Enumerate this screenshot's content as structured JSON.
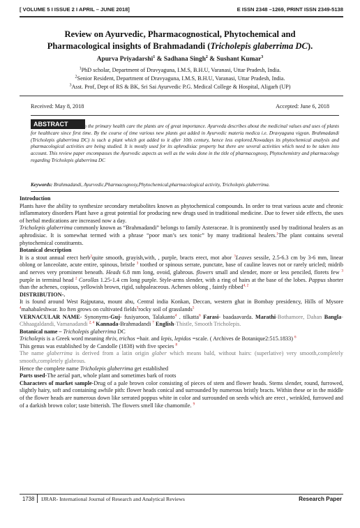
{
  "header": {
    "volume": "[ VOLUME 5 I ISSUE 2 I APRIL – JUNE 2018]",
    "issn": "E ISSN 2348 –1269, PRINT ISSN 2349-5138"
  },
  "title": {
    "line1": "Review on Ayurvedic, Pharmacognostical, Phytochemical and",
    "line2_prefix": "Pharmacological insights of Brahmadandi (",
    "line2_species": "Tricholepis glaberrima DC",
    "line2_suffix": ")."
  },
  "authors": {
    "a1": "Apurva Priyadarshi",
    "a2": "Sadhana Singh",
    "a3": "Sushant Kumar",
    "sep1": " & ",
    "sep2": " & ",
    "n1": "1",
    "n2": "2",
    "n3": "3"
  },
  "affiliations": [
    {
      "n": "1",
      "text": "PhD scholar, Department of Dravyaguna, I.M.S, B.H.U, Varanasi, Uttar Pradesh, India."
    },
    {
      "n": "2",
      "text": "Senior Resident, Department of Dravyaguna, I.M.S, B.H.U, Varanasi, Uttar Pradesh, India."
    },
    {
      "n": "3",
      "text": "Asst. Prof, Dept of RS & BK, Sri Sai Ayurvedic P.G. Medical College & Hospital, Aligarh (UP)"
    }
  ],
  "dates": {
    "received": "Received: May 8, 2018",
    "accepted": "Accepted: June 6, 2018"
  },
  "abstract": {
    "label": "ABSTRACT",
    "text": "In the primary health care the plants are of great importance. Ayurveda describes about the medicinal values and uses of plants for healthcare since first time. By the course of time various new plants got added in Ayurvedic materia medica i.e. Dravyaguna vigyan. Brahmadandi (Tricholepis glaberrima DC) is such a plant which got added to it after 10th century, hence less explored.Nowadays its phytochemical analysis and pharmacological activities are being studied. It is mostly used for its aphrodisiac property but there are several activities which need to be taken into account. This review paper encompasses the Ayurvedic aspects as well as the woks done in the title of pharmacognosy, Phytochemistry and pharmacology regarding Tricholepis glaberrima DC"
  },
  "keywords": {
    "label": "Keywords:",
    "text": "Brahmadandi, Ayurvedic,Pharmacognosy,Phytochemical,pharmacological activity, Tricholepis glaberrima."
  },
  "body": {
    "intro_heading": "Introduction",
    "intro_p1": "Plants have the ability to synthesize secondary metabolites known as phytochemical compounds. In order to treat various acute and chronic inflammatory disorders Plant have a great potential for producing new drugs used in traditional medicine. Due to fewer side effects, the uses of herbal medications are increased now a day.",
    "intro_p2_italic": "Tricholepis glaberrima",
    "intro_p2": " commonly known as “Brahmadandi” belongs to family Asteraceae. It is prominently used by traditional healers as an aphrodisiac.  It is somewhat termed with a phrase “poor man’s sex tonic” by many traditional healers.",
    "intro_p2_ref": "1",
    "intro_p2_end": "The plant contains several phytochemical constituents.",
    "bot_heading": "Botanical description",
    "bot_a": "It is a stout annual erect herb",
    "bot_ref2": "2",
    "bot_b": "quite smooth, grayish,with, , purple, bracts erect, mot abor ",
    "bot_ref3": "3",
    "bot_leaves": "Leaves",
    "bot_c": " sessile, 2.5-6.3 cm by 3-6 mm, linear oblong or lanceolate, acute entire, spinous, bristle ",
    "bot_ref3b": "3",
    "bot_d": " toothed or spinous serrate, punctate, base of cauline leaves not or rarely uricled; midrib and nerves very prominent beneath. ",
    "bot_heads": "Heads",
    "bot_e": " 6.8 mm long, ovoid, glabrous. ",
    "bot_flowers": "flowers",
    "bot_f": " small and slender, more or less penciled, florets few ",
    "bot_ref3c": "3",
    "bot_g": " purple in terminal head ",
    "bot_ref2b": "2",
    "bot_corollas": "Corollas",
    "bot_h": " 1.25-1.4 cm long purple. Style-arms slender, with a ring of hairs at the base of the lobes. ",
    "bot_pappus": "Pappus",
    "bot_i": " shorter than the achenes, copious, yellowish brown, rigid, subpaleaceous. Achenes oblong , faintly ribbed",
    "bot_ref_end": "4, 2",
    "dist_heading": "DISTRIBUTION-.",
    "dist_a": "It is found around West Rajputana, mount abu, Central india Konkan, Deccan, western ghat in Bombay presidency, Hills of Mysore ",
    "dist_ref4": "4",
    "dist_b": "mahabaleshwar. Ito ften grows on cultivated fields",
    "dist_ref3": "3",
    "dist_c": "rocky soil of grasslands",
    "dist_ref5": "5",
    "vern_heading": "VERNACULAR NAME",
    "vern_a": "- Synonyms-",
    "vern_guj": "Guj",
    "vern_b": "- fusiyaroon, Talakanto",
    "vern_ref4": "4",
    "vern_c": " . tilkatta",
    "vern_ref6": "6",
    "vern_farasi": " Farasi",
    "vern_d": "- baadaavarda. ",
    "vern_marathi": "Marathi",
    "vern_e": "-Bothamore, Dahan ",
    "vern_bangla": "Bangla",
    "vern_f": "- Chhaagaldandi, Vamanadandi ",
    "vern_ref24": "2, 4",
    "vern_kannada": " Kannada",
    "vern_g": "-Brahmadandi ",
    "vern_ref7": "7",
    "vern_english": " English",
    "vern_h": "-Thistle, Smooth Tricholepis.",
    "botname_heading": "Botanical name – ",
    "botname_species": "Tricholepis glaberrima",
    "botname_dc": " DC",
    "tric_a_italic": "Tricholepis",
    "tric_b": " is a Greek word meaning ",
    "tric_thrix": "thrix, trichos",
    "tric_c": " =hair. and ",
    "tric_lepis": "lepis, lepidos",
    "tric_d": " =scale. ( Archives de Botanique2:515.1833) ",
    "tric_ref6": "6",
    "genus_a": "This genus was established by de Candolle (1838) with five species ",
    "genus_ref8": "8",
    "glab_a": "The name ",
    "glab_italic": "glaberrima",
    "glab_b": " is derived from a latin origin ",
    "glab_glaber": "glaber",
    "glab_c": " which means bald, without hairs: (superlative) very smooth,completely smooth,completely glabrous.",
    "hence_a": "Hence the complete name ",
    "hence_species": "Tricholepis glaberrima",
    "hence_b": " get established",
    "parts_heading": "Parts used",
    "parts_text": "-The aerial part, whole plant and sometimes bark of roots",
    "char_heading": "Characters of market sample",
    "char_text": "-Drug of a pale brown color consisting of pieces of stem and flower heads. Stems slender, round, furrowed, slightly hairy, soft and containing awhile pith: flower heads conical and surrounded by numerous bristly bracts. Within these or in the middle of the flower heads are numerous down like serrated poppus white in color and surrounded on seeds which are erect , wrinkled, furrowed and of a darkish brown color; taste bitterish. The flowers smell like chamomile. ",
    "char_ref9": "9"
  },
  "footer": {
    "page": "1738",
    "journal": "IJRAR- International Journal of Research and Analytical Reviews",
    "label": "Research Paper"
  }
}
